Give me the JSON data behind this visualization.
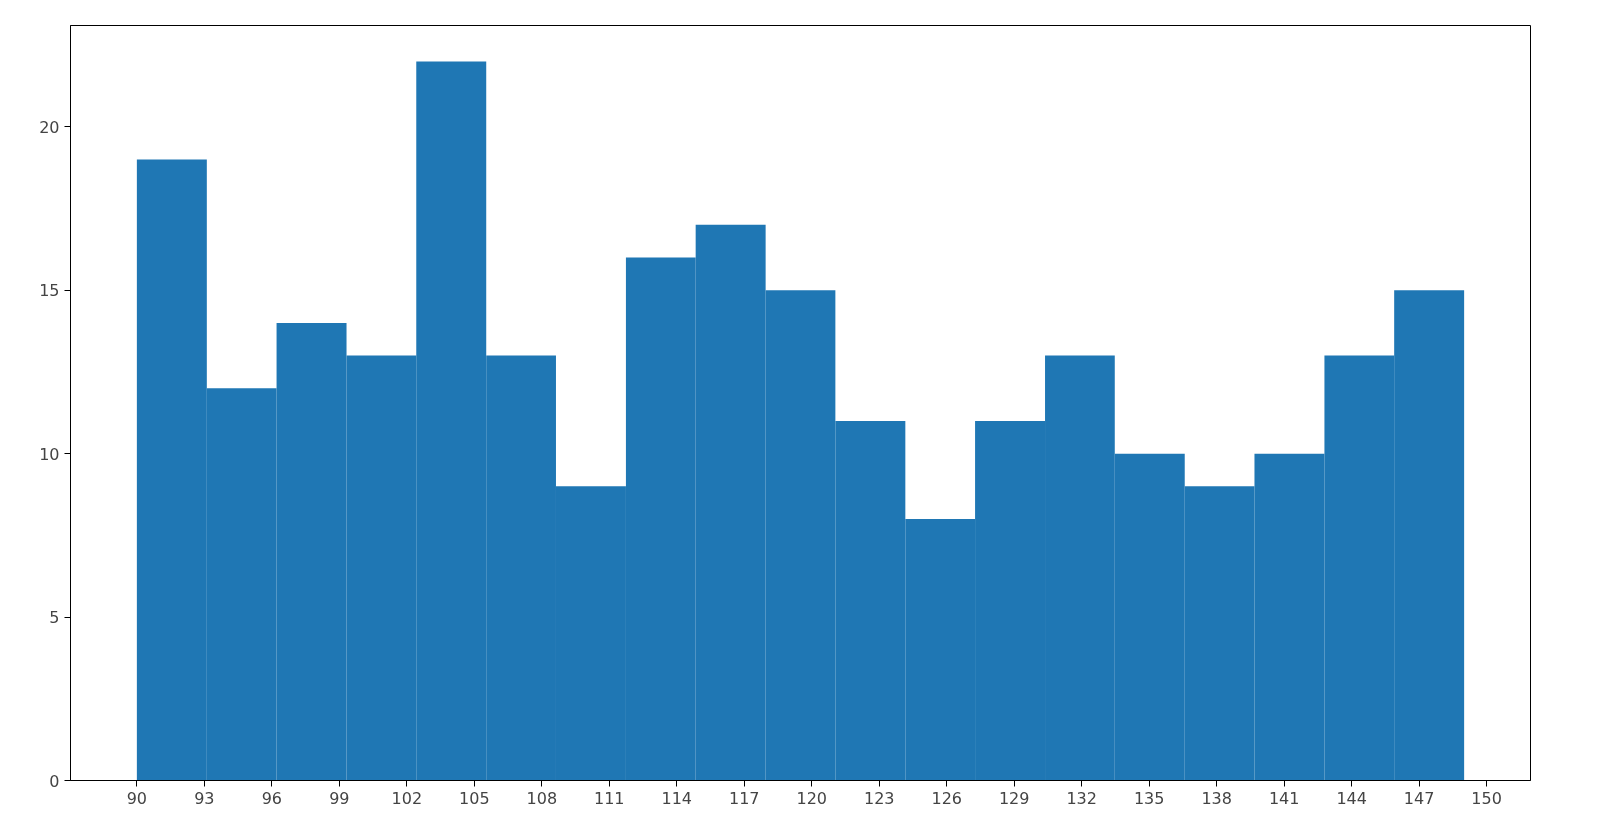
{
  "chart_data": {
    "type": "histogram",
    "color": "#1f77b4",
    "bins": [
      90,
      93.11,
      96.21,
      99.32,
      102.42,
      105.53,
      108.63,
      111.74,
      114.84,
      117.95,
      121.05,
      124.16,
      127.26,
      130.37,
      133.47,
      136.58,
      139.68,
      142.79,
      145.89,
      149
    ],
    "values": [
      19,
      12,
      14,
      13,
      22,
      13,
      9,
      16,
      17,
      15,
      11,
      8,
      11,
      13,
      10,
      9,
      10,
      13,
      15
    ],
    "xlim": [
      87.05,
      151.95
    ],
    "xticks": [
      90,
      93,
      96,
      99,
      102,
      105,
      108,
      111,
      114,
      117,
      120,
      123,
      126,
      129,
      132,
      135,
      138,
      141,
      144,
      147,
      150
    ],
    "ylim": [
      0,
      23.1
    ],
    "yticks": [
      0,
      5,
      10,
      15,
      20
    ],
    "grid": false
  }
}
